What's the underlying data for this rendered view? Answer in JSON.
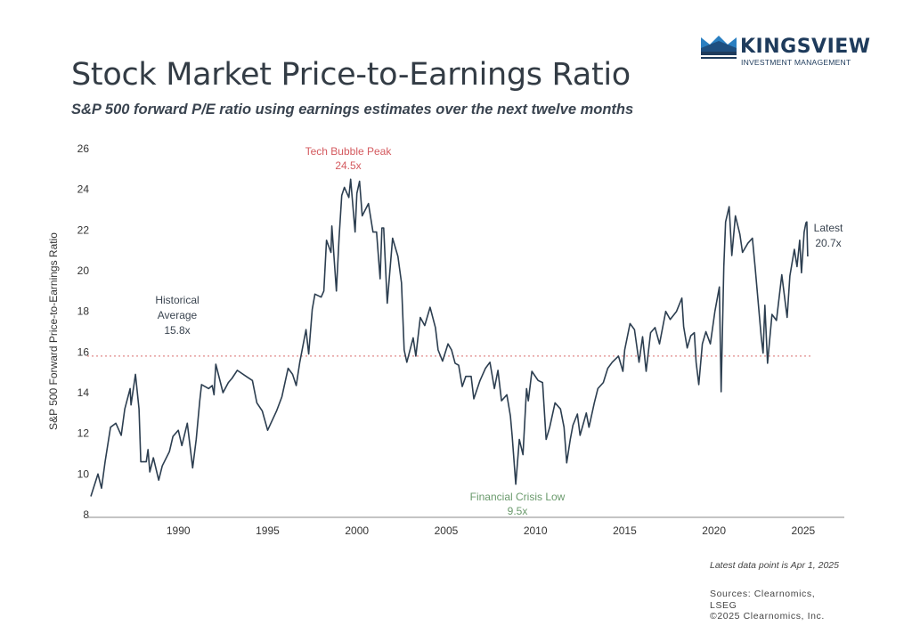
{
  "header": {
    "title": "Stock Market Price-to-Earnings Ratio",
    "subtitle": "S&P 500 forward P/E ratio using earnings estimates over the next twelve months"
  },
  "logo": {
    "brand": "KINGSVIEW",
    "tagline": "INVESTMENT MANAGEMENT",
    "color": "#1e3b5c",
    "accent": "#2a7fc1"
  },
  "footer": {
    "note": "Latest data point is Apr 1, 2025",
    "sources_line1": "Sources: Clearnomics,",
    "sources_line2": "LSEG",
    "copyright": "©2025 Clearnomics, Inc."
  },
  "chart_data": {
    "type": "line",
    "title": "",
    "xlabel": "",
    "ylabel": "S&P 500 Forward Price-to-Earnings Ratio",
    "xlim": [
      1984.9,
      2027.3
    ],
    "ylim": [
      8,
      26
    ],
    "x_ticks": [
      1990,
      1995,
      2000,
      2005,
      2010,
      2015,
      2020,
      2025
    ],
    "y_ticks": [
      8,
      10,
      12,
      14,
      16,
      18,
      20,
      22,
      24,
      26
    ],
    "grid": false,
    "line_color": "#2c3e50",
    "reference_line": {
      "value": 15.8,
      "color": "#e08a8a",
      "style": "dotted"
    },
    "annotations": [
      {
        "id": "tech",
        "line1": "Tech Bubble Peak",
        "line2": "24.5x",
        "color": "#d45a5f"
      },
      {
        "id": "avg",
        "line1": "Historical",
        "line2": "Average",
        "line3": "15.8x",
        "color": "#3a4450"
      },
      {
        "id": "fc",
        "line1": "Financial Crisis Low",
        "line2": "9.5x",
        "color": "#6a9a6c"
      },
      {
        "id": "latest",
        "line1": "Latest",
        "line2": "20.7x",
        "color": "#3a4450"
      }
    ],
    "series": [
      {
        "x": [
          1985.1,
          1985.5,
          1985.7,
          1985.9,
          1986.2,
          1986.5,
          1986.8,
          1987.0,
          1987.3,
          1987.35,
          1987.6,
          1987.8,
          1987.9,
          1988.2,
          1988.3,
          1988.4,
          1988.6,
          1988.9,
          1989.1,
          1989.5,
          1989.7,
          1990.0,
          1990.2,
          1990.5,
          1990.8,
          1991.0,
          1991.2,
          1991.3,
          1991.7,
          1991.9,
          1992.0,
          1992.1,
          1992.5,
          1992.8,
          1993.0,
          1993.3,
          1993.8,
          1994.15,
          1994.4,
          1994.7,
          1995.0,
          1995.5,
          1995.8,
          1996.15,
          1996.4,
          1996.6,
          1996.8,
          1997.15,
          1997.3,
          1997.5,
          1997.65,
          1998.0,
          1998.15,
          1998.3,
          1998.55,
          1998.6,
          1998.85,
          1999.0,
          1999.15,
          1999.3,
          1999.55,
          1999.65,
          1999.9,
          2000.0,
          2000.15,
          2000.3,
          2000.65,
          2000.9,
          2001.1,
          2001.3,
          2001.4,
          2001.5,
          2001.7,
          2002.0,
          2002.3,
          2002.5,
          2002.65,
          2002.8,
          2003.15,
          2003.3,
          2003.55,
          2003.8,
          2004.1,
          2004.4,
          2004.55,
          2004.8,
          2005.1,
          2005.3,
          2005.5,
          2005.7,
          2005.9,
          2006.1,
          2006.4,
          2006.55,
          2006.9,
          2007.2,
          2007.45,
          2007.7,
          2007.9,
          2008.1,
          2008.4,
          2008.6,
          2008.7,
          2008.9,
          2009.1,
          2009.3,
          2009.5,
          2009.6,
          2009.8,
          2010.15,
          2010.4,
          2010.6,
          2010.8,
          2011.1,
          2011.4,
          2011.6,
          2011.75,
          2011.95,
          2012.1,
          2012.35,
          2012.5,
          2012.85,
          2013.0,
          2013.3,
          2013.5,
          2013.8,
          2014.05,
          2014.3,
          2014.65,
          2014.9,
          2015.0,
          2015.3,
          2015.55,
          2015.8,
          2016.0,
          2016.2,
          2016.45,
          2016.7,
          2016.95,
          2017.3,
          2017.55,
          2017.9,
          2018.2,
          2018.3,
          2018.5,
          2018.7,
          2018.9,
          2019.0,
          2019.15,
          2019.35,
          2019.55,
          2019.8,
          2020.05,
          2020.3,
          2020.4,
          2020.55,
          2020.65,
          2020.85,
          2021.0,
          2021.2,
          2021.45,
          2021.6,
          2021.9,
          2022.15,
          2022.3,
          2022.45,
          2022.65,
          2022.75,
          2022.85,
          2023.0,
          2023.25,
          2023.5,
          2023.8,
          2024.1,
          2024.25,
          2024.5,
          2024.65,
          2024.8,
          2024.9,
          2025.05,
          2025.15,
          2025.2,
          2025.25
        ],
        "y": [
          8.9,
          10.0,
          9.3,
          10.6,
          12.3,
          12.5,
          11.9,
          13.2,
          14.2,
          13.4,
          14.9,
          13.2,
          10.6,
          10.6,
          11.2,
          10.1,
          10.8,
          9.7,
          10.4,
          11.1,
          11.85,
          12.15,
          11.4,
          12.5,
          10.3,
          11.7,
          13.6,
          14.4,
          14.2,
          14.35,
          13.9,
          15.4,
          14.0,
          14.5,
          14.7,
          15.1,
          14.8,
          14.6,
          13.5,
          13.1,
          12.15,
          13.1,
          13.8,
          15.2,
          14.9,
          14.35,
          15.5,
          17.1,
          15.9,
          18.1,
          18.85,
          18.7,
          19.0,
          21.5,
          20.9,
          22.2,
          19.0,
          21.6,
          23.7,
          24.1,
          23.6,
          24.5,
          21.9,
          23.8,
          24.4,
          22.7,
          23.3,
          21.9,
          21.9,
          19.6,
          22.1,
          22.1,
          18.4,
          21.6,
          20.7,
          19.4,
          16.1,
          15.5,
          16.7,
          15.8,
          17.7,
          17.3,
          18.2,
          17.2,
          16.1,
          15.55,
          16.4,
          16.1,
          15.45,
          15.35,
          14.3,
          14.8,
          14.8,
          13.7,
          14.6,
          15.2,
          15.5,
          14.2,
          15.1,
          13.6,
          13.9,
          12.85,
          11.85,
          9.5,
          11.7,
          10.95,
          14.2,
          13.6,
          15.05,
          14.6,
          14.5,
          11.7,
          12.3,
          13.5,
          13.2,
          12.3,
          10.55,
          11.7,
          12.4,
          12.95,
          11.9,
          13.0,
          12.3,
          13.5,
          14.2,
          14.5,
          15.2,
          15.5,
          15.8,
          15.05,
          16.1,
          17.4,
          17.1,
          15.5,
          16.75,
          15.05,
          16.95,
          17.2,
          16.4,
          18.0,
          17.6,
          18.0,
          18.65,
          17.25,
          16.2,
          16.8,
          16.95,
          15.5,
          14.4,
          16.4,
          17.0,
          16.4,
          18.0,
          19.2,
          14.05,
          20.2,
          22.4,
          23.15,
          20.75,
          22.7,
          21.8,
          20.9,
          21.35,
          21.6,
          20.2,
          18.7,
          16.7,
          15.95,
          18.3,
          15.45,
          17.85,
          17.55,
          19.8,
          17.7,
          19.75,
          21.05,
          20.2,
          21.5,
          19.9,
          21.9,
          22.35,
          22.4,
          20.7
        ]
      }
    ]
  }
}
